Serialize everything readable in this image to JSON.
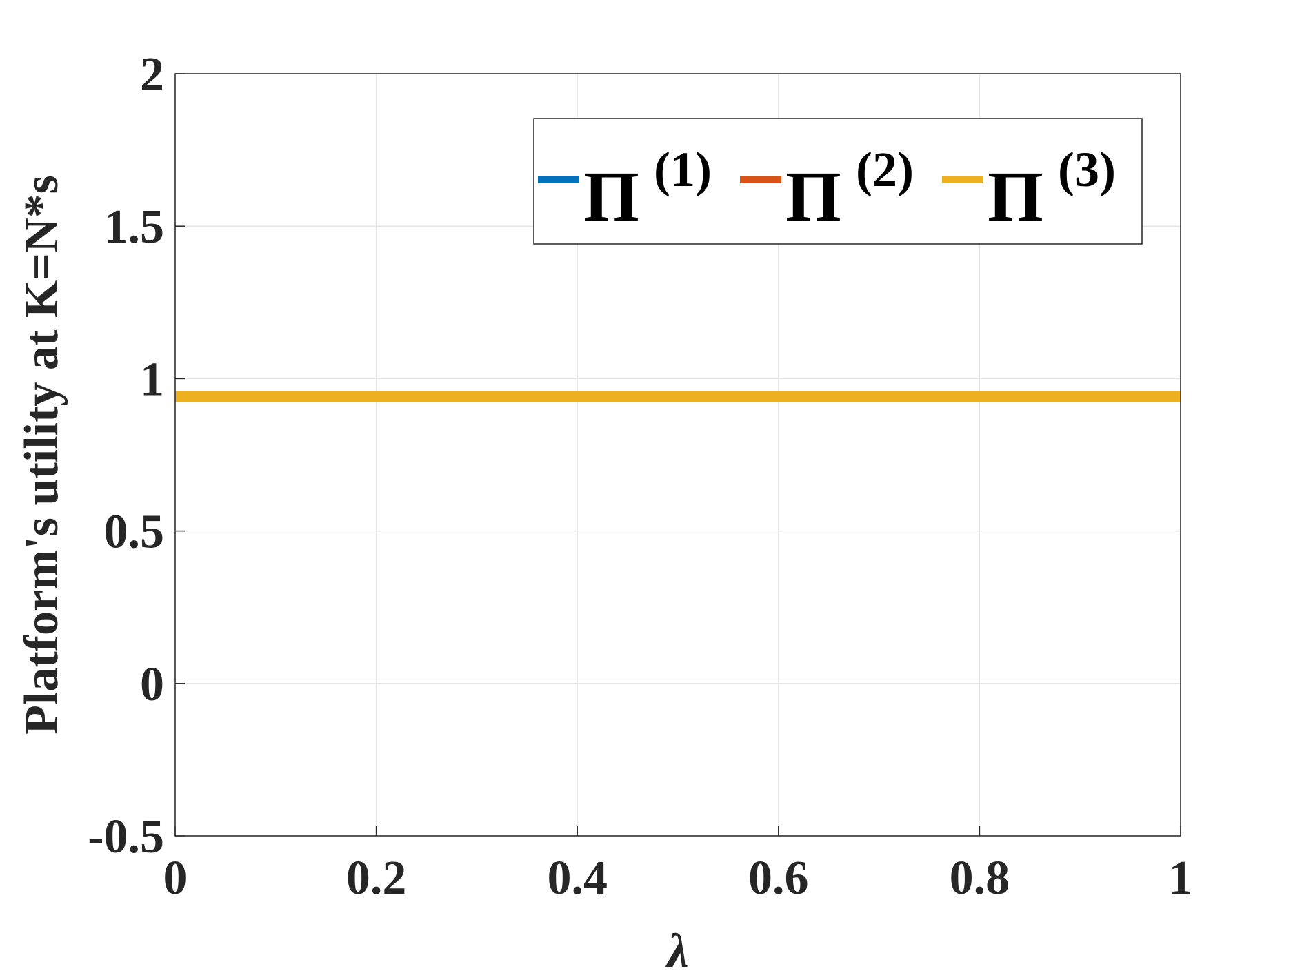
{
  "chart_data": {
    "type": "line",
    "title": "",
    "xlabel": "λ",
    "ylabel": "Platform's utility at K=N*s",
    "xlim": [
      0,
      1
    ],
    "ylim": [
      -0.5,
      2
    ],
    "x_ticks": [
      0,
      0.2,
      0.4,
      0.6,
      0.8,
      1
    ],
    "x_tick_labels": [
      "0",
      "0.2",
      "0.4",
      "0.6",
      "0.8",
      "1"
    ],
    "y_ticks": [
      -0.5,
      0,
      0.5,
      1,
      1.5,
      2
    ],
    "y_tick_labels": [
      "-0.5",
      "0",
      "0.5",
      "1",
      "1.5",
      "2"
    ],
    "grid": true,
    "legend_position": "top-right",
    "x": [
      0,
      0.2,
      0.4,
      0.6,
      0.8,
      1
    ],
    "series": [
      {
        "name": "Π",
        "superscript": "(1)",
        "color": "#0072BD",
        "values": [
          0.94,
          0.94,
          0.94,
          0.94,
          0.94,
          0.94
        ]
      },
      {
        "name": "Π",
        "superscript": "(2)",
        "color": "#D95319",
        "values": [
          0.94,
          0.94,
          0.94,
          0.94,
          0.94,
          0.94
        ]
      },
      {
        "name": "Π",
        "superscript": "(3)",
        "color": "#EDB120",
        "values": [
          0.94,
          0.94,
          0.94,
          0.94,
          0.94,
          0.94
        ]
      }
    ]
  }
}
